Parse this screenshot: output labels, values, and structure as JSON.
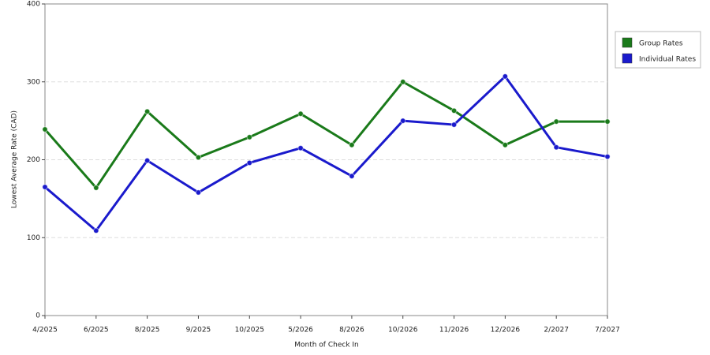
{
  "chart_data": {
    "type": "line",
    "x_label": "Month of Check In",
    "y_label": "Lowest Average Rate (CAD)",
    "categories": [
      "4/2025",
      "6/2025",
      "8/2025",
      "9/2025",
      "10/2025",
      "5/2026",
      "8/2026",
      "10/2026",
      "11/2026",
      "12/2026",
      "2/2027",
      "7/2027"
    ],
    "series": [
      {
        "name": "Group Rates",
        "color": "#1a7a1a",
        "values": [
          239,
          164,
          262,
          203,
          229,
          259,
          219,
          300,
          263,
          219,
          249,
          249
        ]
      },
      {
        "name": "Individual Rates",
        "color": "#1a1acc",
        "values": [
          165,
          109,
          199,
          158,
          196,
          215,
          179,
          250,
          245,
          307,
          216,
          204
        ]
      }
    ],
    "ylim": [
      0,
      400
    ],
    "yticks": [
      0,
      100,
      200,
      300,
      400
    ],
    "grid": true,
    "legend": "right"
  }
}
